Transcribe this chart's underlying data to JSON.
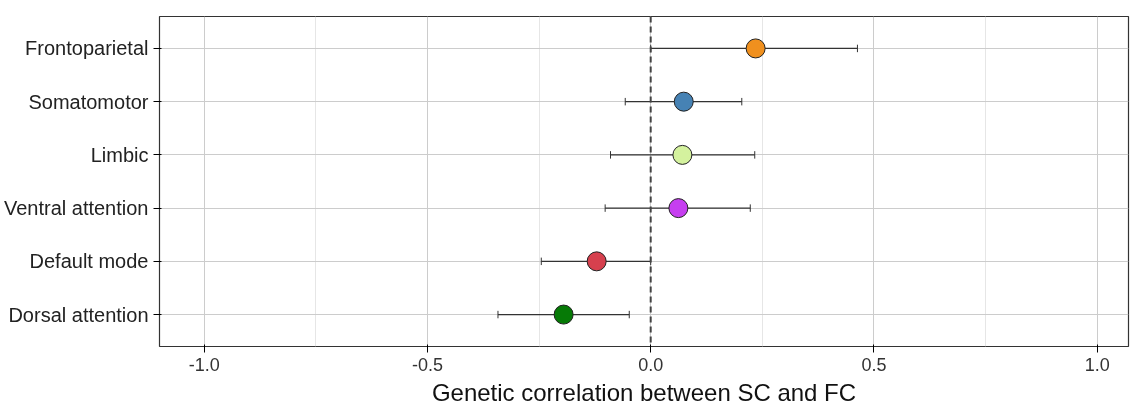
{
  "chart_data": {
    "type": "scatter",
    "orientation": "horizontal",
    "xlabel": "Genetic correlation between SC and FC",
    "categories": [
      "Frontoparietal",
      "Somatomotor",
      "Limbic",
      "Ventral attention",
      "Default mode",
      "Dorsal attention"
    ],
    "values": [
      0.235,
      0.074,
      0.071,
      0.062,
      -0.121,
      -0.195
    ],
    "errors": [
      [
        0.0,
        0.463
      ],
      [
        -0.057,
        0.204
      ],
      [
        -0.09,
        0.233
      ],
      [
        -0.102,
        0.223
      ],
      [
        -0.245,
        0.0
      ],
      [
        -0.342,
        -0.048
      ]
    ],
    "colors": [
      "#f0901e",
      "#4682b4",
      "#d4f29e",
      "#c63ef0",
      "#d6404e",
      "#067a06"
    ],
    "xlim": [
      -1.1,
      1.07
    ],
    "xticks": [
      {
        "value": -1,
        "label": "-1.0"
      },
      {
        "value": -0.75,
        "label": null
      },
      -0.5,
      {
        "value": -0.25,
        "label": null
      },
      {
        "value": 0,
        "label": "0.0"
      },
      {
        "value": 0.25,
        "label": null
      },
      0.5,
      {
        "value": 0.75,
        "label": null
      },
      {
        "value": 1,
        "label": "1.0"
      }
    ],
    "ref_lines": [
      {
        "axis": "x",
        "value": 0,
        "line_style": "dashed",
        "color": "#444444"
      }
    ],
    "grid": true,
    "marker": "circle"
  }
}
